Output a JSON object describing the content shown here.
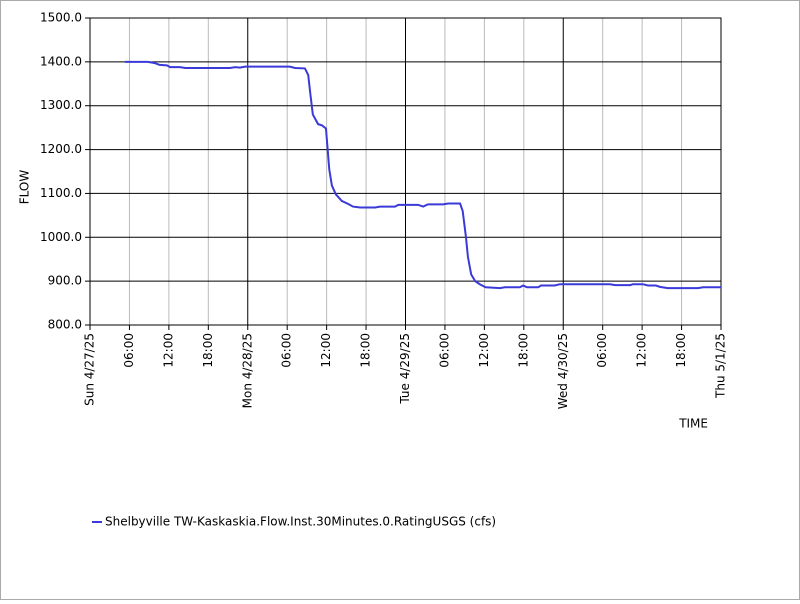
{
  "chart_data": {
    "type": "line",
    "xlabel": "TIME",
    "ylabel": "FLOW",
    "xlim": [
      0,
      96
    ],
    "xticks": [
      {
        "value": 0,
        "label": "Sun 4/27/25"
      },
      {
        "value": 6,
        "label": "06:00"
      },
      {
        "value": 12,
        "label": "12:00"
      },
      {
        "value": 18,
        "label": "18:00"
      },
      {
        "value": 24,
        "label": "Mon 4/28/25"
      },
      {
        "value": 30,
        "label": "06:00"
      },
      {
        "value": 36,
        "label": "12:00"
      },
      {
        "value": 42,
        "label": "18:00"
      },
      {
        "value": 48,
        "label": "Tue 4/29/25"
      },
      {
        "value": 54,
        "label": "06:00"
      },
      {
        "value": 60,
        "label": "12:00"
      },
      {
        "value": 66,
        "label": "18:00"
      },
      {
        "value": 72,
        "label": "Wed 4/30/25"
      },
      {
        "value": 78,
        "label": "06:00"
      },
      {
        "value": 84,
        "label": "12:00"
      },
      {
        "value": 90,
        "label": "18:00"
      },
      {
        "value": 96,
        "label": "Thu 5/1/25"
      }
    ],
    "ylim": [
      800,
      1500
    ],
    "yticks": [
      {
        "value": 800,
        "label": "800.0"
      },
      {
        "value": 900,
        "label": "900.0"
      },
      {
        "value": 1000,
        "label": "1000.0"
      },
      {
        "value": 1100,
        "label": "1100.0"
      },
      {
        "value": 1200,
        "label": "1200.0"
      },
      {
        "value": 1300,
        "label": "1300.0"
      },
      {
        "value": 1400,
        "label": "1400.0"
      },
      {
        "value": 1500,
        "label": "1500.0"
      }
    ],
    "grid": true,
    "x": [
      5.3,
      8.8,
      9.9,
      10.6,
      11.7,
      12.2,
      13.7,
      14.5,
      21.3,
      22.1,
      22.8,
      23.6,
      30.4,
      31.2,
      32.7,
      33.2,
      33.5,
      33.9,
      34.7,
      35.3,
      35.9,
      36.4,
      36.8,
      37.4,
      38.3,
      39.3,
      40,
      41.1,
      43.4,
      44.1,
      46.4,
      46.9,
      49.9,
      50.7,
      51.4,
      53.7,
      54.5,
      56.3,
      56.7,
      57.2,
      57.5,
      58,
      58.6,
      59.3,
      60.2,
      62.4,
      63.1,
      65.4,
      65.9,
      66.5,
      68.2,
      68.6,
      70.7,
      71.5,
      79.1,
      79.9,
      82.2,
      82.6,
      84.1,
      84.9,
      86.1,
      86.7,
      87.9,
      92.5,
      93.3,
      96
    ],
    "series": [
      {
        "name": "Shelbyville TW-Kaskaskia.Flow.Inst.30Minutes.0.RatingUSGS (cfs)",
        "color": "#3a3ad8",
        "values": [
          1400,
          1400,
          1397,
          1393,
          1392,
          1388,
          1388,
          1386,
          1386,
          1388,
          1387,
          1389,
          1389,
          1386,
          1385,
          1370,
          1330,
          1280,
          1258,
          1255,
          1248,
          1155,
          1118,
          1098,
          1083,
          1076,
          1070,
          1068,
          1068,
          1070,
          1070,
          1074,
          1074,
          1070,
          1075,
          1075,
          1077,
          1077,
          1060,
          1000,
          955,
          915,
          900,
          893,
          886,
          884,
          886,
          886,
          890,
          886,
          886,
          890,
          890,
          893,
          893,
          891,
          891,
          893,
          893,
          890,
          890,
          887,
          884,
          884,
          886,
          886
        ]
      }
    ]
  }
}
